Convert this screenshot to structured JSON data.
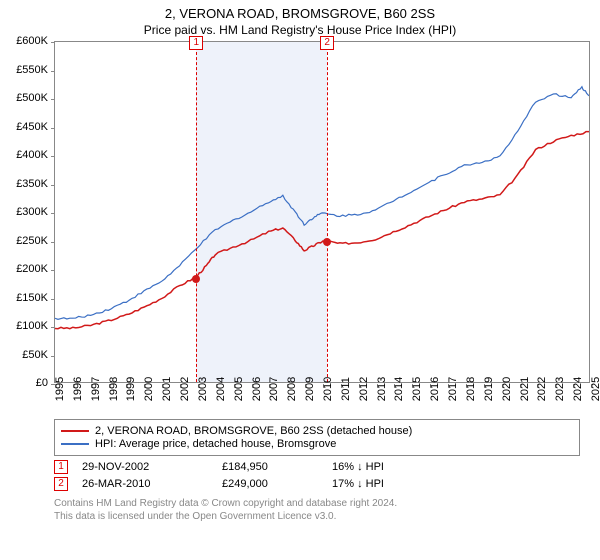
{
  "title": "2, VERONA ROAD, BROMSGROVE, B60 2SS",
  "subtitle": "Price paid vs. HM Land Registry's House Price Index (HPI)",
  "chart": {
    "type": "line",
    "background_color": "#ffffff",
    "border_color": "#888888",
    "ylim": [
      0,
      600000
    ],
    "ytick_step": 50000,
    "ytick_labels": [
      "£0",
      "£50K",
      "£100K",
      "£150K",
      "£200K",
      "£250K",
      "£300K",
      "£350K",
      "£400K",
      "£450K",
      "£500K",
      "£550K",
      "£600K"
    ],
    "label_fontsize": 11,
    "x_start_year": 1995,
    "x_end_year": 2025,
    "xtick_labels": [
      "1995",
      "1996",
      "1997",
      "1998",
      "1999",
      "2000",
      "2001",
      "2002",
      "2003",
      "2004",
      "2005",
      "2006",
      "2007",
      "2008",
      "2009",
      "2010",
      "2011",
      "2012",
      "2013",
      "2014",
      "2015",
      "2016",
      "2017",
      "2018",
      "2019",
      "2020",
      "2021",
      "2022",
      "2023",
      "2024",
      "2025"
    ],
    "shaded_region": {
      "from_year": 2002.91,
      "to_year": 2010.23,
      "color": "#eef2fa"
    },
    "series": [
      {
        "name": "price_paid",
        "label": "2, VERONA ROAD, BROMSGROVE, B60 2SS (detached house)",
        "color": "#d11919",
        "line_width": 1.5,
        "points": [
          [
            1995.0,
            95000
          ],
          [
            1996.0,
            95000
          ],
          [
            1997.0,
            100000
          ],
          [
            1998.0,
            108000
          ],
          [
            1999.0,
            118000
          ],
          [
            2000.0,
            132000
          ],
          [
            2001.0,
            148000
          ],
          [
            2002.0,
            170000
          ],
          [
            2002.91,
            184950
          ],
          [
            2003.5,
            205000
          ],
          [
            2004.0,
            225000
          ],
          [
            2005.0,
            238000
          ],
          [
            2006.0,
            250000
          ],
          [
            2007.0,
            265000
          ],
          [
            2007.8,
            272000
          ],
          [
            2008.5,
            250000
          ],
          [
            2009.0,
            232000
          ],
          [
            2009.5,
            240000
          ],
          [
            2010.0,
            248000
          ],
          [
            2010.23,
            249000
          ],
          [
            2011.0,
            244000
          ],
          [
            2012.0,
            246000
          ],
          [
            2013.0,
            252000
          ],
          [
            2014.0,
            265000
          ],
          [
            2015.0,
            278000
          ],
          [
            2016.0,
            292000
          ],
          [
            2017.0,
            305000
          ],
          [
            2018.0,
            318000
          ],
          [
            2019.0,
            323000
          ],
          [
            2020.0,
            330000
          ],
          [
            2021.0,
            365000
          ],
          [
            2022.0,
            410000
          ],
          [
            2023.0,
            425000
          ],
          [
            2024.0,
            435000
          ],
          [
            2025.0,
            442000
          ]
        ]
      },
      {
        "name": "hpi",
        "label": "HPI: Average price, detached house, Bromsgrove",
        "color": "#3b6fc4",
        "line_width": 1.2,
        "points": [
          [
            1995.0,
            112000
          ],
          [
            1996.0,
            112000
          ],
          [
            1997.0,
            118000
          ],
          [
            1998.0,
            128000
          ],
          [
            1999.0,
            142000
          ],
          [
            2000.0,
            160000
          ],
          [
            2001.0,
            178000
          ],
          [
            2002.0,
            205000
          ],
          [
            2003.0,
            238000
          ],
          [
            2004.0,
            268000
          ],
          [
            2005.0,
            285000
          ],
          [
            2006.0,
            300000
          ],
          [
            2007.0,
            318000
          ],
          [
            2007.8,
            328000
          ],
          [
            2008.5,
            300000
          ],
          [
            2009.0,
            278000
          ],
          [
            2009.5,
            290000
          ],
          [
            2010.0,
            298000
          ],
          [
            2011.0,
            293000
          ],
          [
            2012.0,
            296000
          ],
          [
            2013.0,
            303000
          ],
          [
            2014.0,
            320000
          ],
          [
            2015.0,
            336000
          ],
          [
            2016.0,
            352000
          ],
          [
            2017.0,
            368000
          ],
          [
            2018.0,
            382000
          ],
          [
            2019.0,
            388000
          ],
          [
            2020.0,
            398000
          ],
          [
            2021.0,
            442000
          ],
          [
            2022.0,
            495000
          ],
          [
            2023.0,
            508000
          ],
          [
            2024.0,
            502000
          ],
          [
            2024.6,
            520000
          ],
          [
            2025.0,
            505000
          ]
        ]
      }
    ],
    "sale_markers": [
      {
        "n": "1",
        "year": 2002.91,
        "value": 184950,
        "dot_color": "#d11919"
      },
      {
        "n": "2",
        "year": 2010.23,
        "value": 249000,
        "dot_color": "#d11919"
      }
    ],
    "marker_label_y_offset": -6
  },
  "legend": {
    "border_color": "#888888",
    "fontsize": 11,
    "items": [
      {
        "color": "#d11919",
        "label": "2, VERONA ROAD, BROMSGROVE, B60 2SS (detached house)"
      },
      {
        "color": "#3b6fc4",
        "label": "HPI: Average price, detached house, Bromsgrove"
      }
    ]
  },
  "sales": [
    {
      "n": "1",
      "date": "29-NOV-2002",
      "price": "£184,950",
      "delta": "16% ↓ HPI"
    },
    {
      "n": "2",
      "date": "26-MAR-2010",
      "price": "£249,000",
      "delta": "17% ↓ HPI"
    }
  ],
  "footer_line1": "Contains HM Land Registry data © Crown copyright and database right 2024.",
  "footer_line2": "This data is licensed under the Open Government Licence v3.0."
}
